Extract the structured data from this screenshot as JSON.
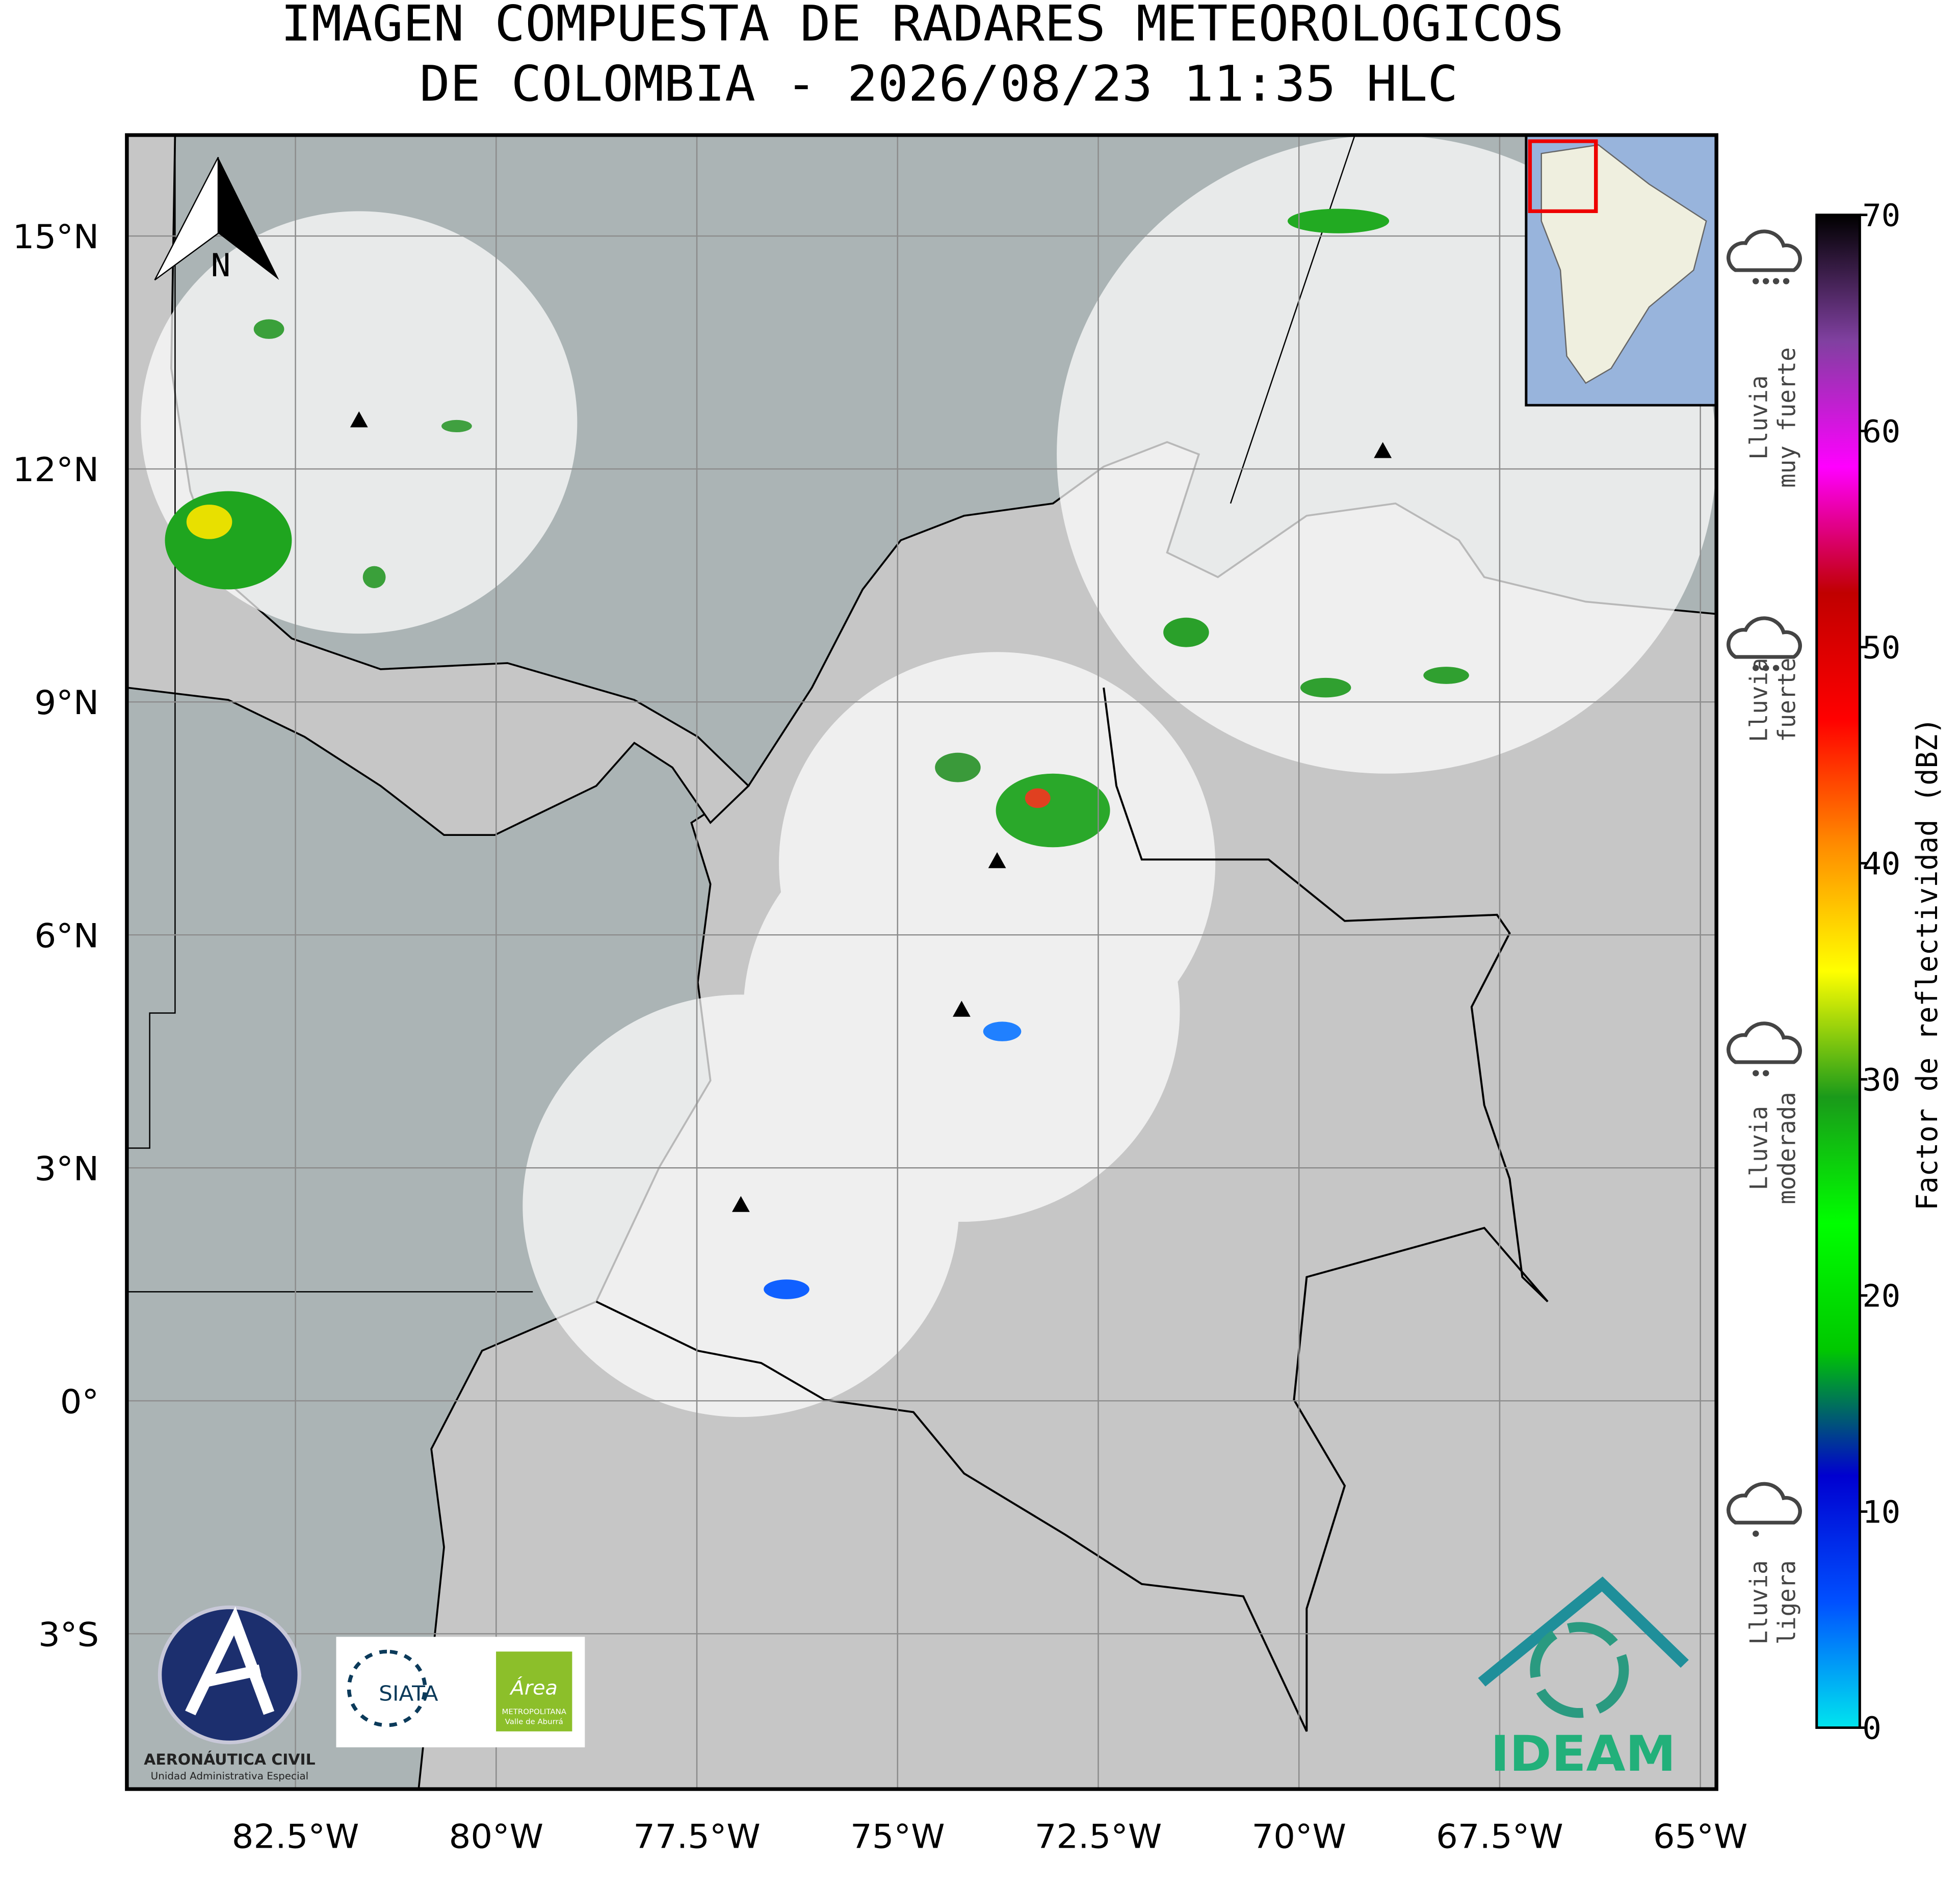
{
  "title_lines": [
    "IMAGEN COMPUESTA DE RADARES METEOROLOGICOS",
    "DE COLOMBIA - 2026/08/23 11:35 HLC"
  ],
  "map": {
    "xlim": [
      -84.6,
      -64.8
    ],
    "ylim": [
      -5.0,
      16.3
    ],
    "xticks": [
      {
        "value": -82.5,
        "label": "82.5°W"
      },
      {
        "value": -80,
        "label": "80°W"
      },
      {
        "value": -77.5,
        "label": "77.5°W"
      },
      {
        "value": -75,
        "label": "75°W"
      },
      {
        "value": -72.5,
        "label": "72.5°W"
      },
      {
        "value": -70,
        "label": "70°W"
      },
      {
        "value": -67.5,
        "label": "67.5°W"
      },
      {
        "value": -65,
        "label": "65°W"
      }
    ],
    "yticks": [
      {
        "value": 15,
        "label": "15°N"
      },
      {
        "value": 12,
        "label": "12°N"
      },
      {
        "value": 9,
        "label": "9°N"
      },
      {
        "value": 6,
        "label": "6°N"
      },
      {
        "value": 3,
        "label": "3°N"
      },
      {
        "value": 0,
        "label": "0°"
      },
      {
        "value": -3,
        "label": "3°S"
      }
    ],
    "grid": true,
    "north_label": "N"
  },
  "colorbar": {
    "label": "Factor de reflectividad (dBZ)",
    "lim": [
      0,
      70
    ],
    "ticks": [
      0,
      10,
      20,
      30,
      40,
      50,
      60,
      70
    ],
    "colors": [
      "#00e5ee",
      "#0050ff",
      "#0000d0",
      "#00c800",
      "#00ff00",
      "#1a9a1a",
      "#ffff00",
      "#ff8c00",
      "#ff0000",
      "#c00000",
      "#ff00ff",
      "#8040a0",
      "#000000"
    ]
  },
  "legend": {
    "items": [
      {
        "lines": [
          "Lluvia",
          "muy fuerte"
        ]
      },
      {
        "lines": [
          "Lluvia",
          "fuerte"
        ]
      },
      {
        "lines": [
          "Lluvia",
          "moderada"
        ]
      },
      {
        "lines": [
          "Lluvia",
          "ligera"
        ]
      }
    ]
  },
  "logos": {
    "aero": "AERONÁUTICA CIVIL",
    "aero_sub": "Unidad Administrativa Especial",
    "siata": "SIATA",
    "area": "Área",
    "area_sub": "METROPOLITANA",
    "area_sub2": "Valle de Aburrá",
    "ideam": "IDEAM"
  }
}
